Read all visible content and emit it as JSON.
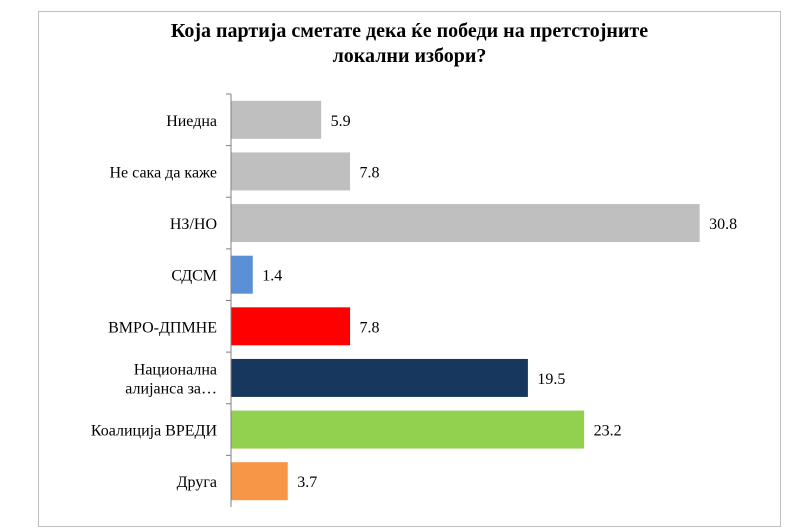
{
  "chart_data": {
    "type": "bar",
    "orientation": "horizontal",
    "title": "Која партија сметате дека ќе победи на претстојните локални избори?",
    "title_lines": [
      "Која партија сметате дека ќе победи на претстојните",
      "локални избори?"
    ],
    "xlabel": "",
    "ylabel": "",
    "xlim": [
      0,
      32
    ],
    "grid": false,
    "legend": "none",
    "categories": [
      {
        "label": "Ниедна",
        "lines": [
          "Ниедна"
        ],
        "value": 5.9,
        "display": "5.9",
        "color": "#bfbfbf"
      },
      {
        "label": "Не сака да каже",
        "lines": [
          "Не сака да каже"
        ],
        "value": 7.8,
        "display": "7.8",
        "color": "#bfbfbf"
      },
      {
        "label": "НЗ/НО",
        "lines": [
          "НЗ/НО"
        ],
        "value": 30.8,
        "display": "30.8",
        "color": "#bfbfbf"
      },
      {
        "label": "СДСМ",
        "lines": [
          "СДСМ"
        ],
        "value": 1.4,
        "display": "1.4",
        "color": "#5b8fd6"
      },
      {
        "label": "ВМРО-ДПМНЕ",
        "lines": [
          "ВМРО-ДПМНЕ"
        ],
        "value": 7.8,
        "display": "7.8",
        "color": "#ff0000"
      },
      {
        "label": "Национална алијанса за…",
        "lines": [
          "Национална",
          "алијанса за…"
        ],
        "value": 19.5,
        "display": "19.5",
        "color": "#17375e"
      },
      {
        "label": "Коалиција ВРЕДИ",
        "lines": [
          "Коалиција ВРЕДИ"
        ],
        "value": 23.2,
        "display": "23.2",
        "color": "#92d050"
      },
      {
        "label": "Друга",
        "lines": [
          "Друга"
        ],
        "value": 3.7,
        "display": "3.7",
        "color": "#f79646"
      }
    ]
  }
}
